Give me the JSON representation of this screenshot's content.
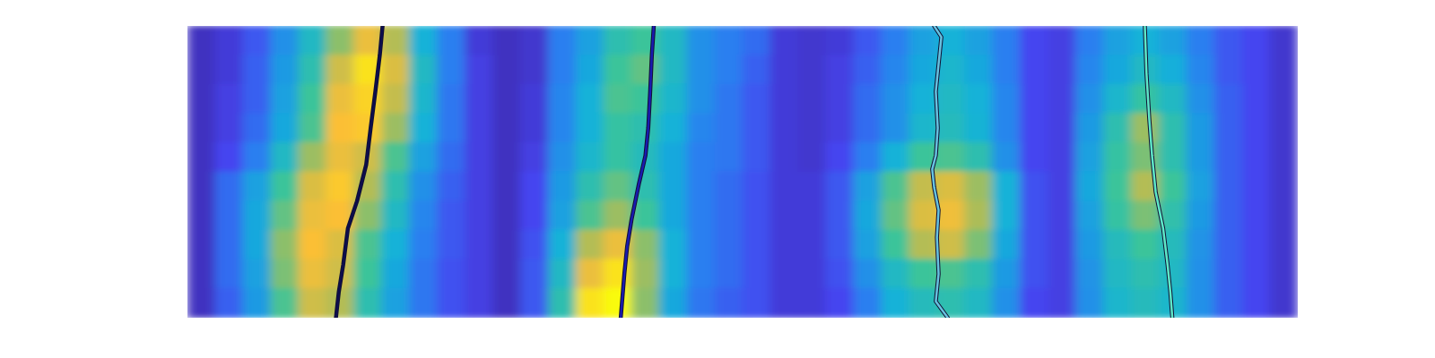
{
  "chart_data": {
    "type": "heatmap",
    "tick_labels": false,
    "xlim": [
      0,
      40
    ],
    "ylim": [
      0,
      10
    ],
    "clim": [
      0,
      1
    ],
    "z": [
      [
        0.05,
        0.1,
        0.2,
        0.35,
        0.5,
        0.7,
        0.85,
        0.75,
        0.45,
        0.3,
        0.1,
        0.05,
        0.08,
        0.3,
        0.4,
        0.55,
        0.6,
        0.5,
        0.35,
        0.3,
        0.25,
        0.1,
        0.08,
        0.1,
        0.2,
        0.3,
        0.4,
        0.45,
        0.4,
        0.3,
        0.15,
        0.12,
        0.3,
        0.4,
        0.45,
        0.4,
        0.3,
        0.2,
        0.15,
        0.08
      ],
      [
        0.05,
        0.1,
        0.22,
        0.38,
        0.55,
        0.8,
        0.95,
        0.82,
        0.5,
        0.3,
        0.12,
        0.05,
        0.08,
        0.3,
        0.42,
        0.6,
        0.65,
        0.5,
        0.35,
        0.3,
        0.22,
        0.1,
        0.08,
        0.12,
        0.22,
        0.32,
        0.42,
        0.48,
        0.42,
        0.3,
        0.15,
        0.12,
        0.32,
        0.42,
        0.5,
        0.44,
        0.32,
        0.2,
        0.15,
        0.08
      ],
      [
        0.05,
        0.12,
        0.22,
        0.4,
        0.6,
        0.85,
        0.92,
        0.78,
        0.48,
        0.28,
        0.12,
        0.05,
        0.1,
        0.32,
        0.45,
        0.62,
        0.6,
        0.48,
        0.35,
        0.28,
        0.2,
        0.1,
        0.08,
        0.12,
        0.25,
        0.35,
        0.45,
        0.5,
        0.45,
        0.32,
        0.15,
        0.12,
        0.35,
        0.48,
        0.58,
        0.5,
        0.35,
        0.22,
        0.15,
        0.08
      ],
      [
        0.05,
        0.12,
        0.25,
        0.42,
        0.62,
        0.88,
        0.9,
        0.72,
        0.45,
        0.28,
        0.12,
        0.05,
        0.1,
        0.32,
        0.45,
        0.58,
        0.55,
        0.45,
        0.32,
        0.28,
        0.2,
        0.1,
        0.08,
        0.12,
        0.25,
        0.35,
        0.48,
        0.52,
        0.46,
        0.32,
        0.15,
        0.12,
        0.38,
        0.55,
        0.72,
        0.55,
        0.38,
        0.22,
        0.15,
        0.08
      ],
      [
        0.05,
        0.15,
        0.3,
        0.5,
        0.72,
        0.85,
        0.8,
        0.62,
        0.4,
        0.25,
        0.12,
        0.05,
        0.12,
        0.35,
        0.48,
        0.58,
        0.52,
        0.42,
        0.3,
        0.28,
        0.2,
        0.1,
        0.08,
        0.15,
        0.3,
        0.45,
        0.6,
        0.62,
        0.55,
        0.35,
        0.15,
        0.12,
        0.4,
        0.58,
        0.68,
        0.55,
        0.38,
        0.22,
        0.15,
        0.08
      ],
      [
        0.05,
        0.25,
        0.4,
        0.6,
        0.82,
        0.9,
        0.75,
        0.55,
        0.35,
        0.22,
        0.12,
        0.05,
        0.15,
        0.38,
        0.55,
        0.65,
        0.55,
        0.42,
        0.3,
        0.25,
        0.18,
        0.1,
        0.1,
        0.2,
        0.4,
        0.62,
        0.78,
        0.82,
        0.72,
        0.45,
        0.18,
        0.12,
        0.42,
        0.6,
        0.75,
        0.6,
        0.4,
        0.22,
        0.15,
        0.08
      ],
      [
        0.05,
        0.25,
        0.42,
        0.65,
        0.85,
        0.88,
        0.7,
        0.5,
        0.32,
        0.2,
        0.12,
        0.05,
        0.15,
        0.4,
        0.62,
        0.72,
        0.6,
        0.42,
        0.3,
        0.25,
        0.18,
        0.1,
        0.1,
        0.2,
        0.42,
        0.65,
        0.82,
        0.86,
        0.74,
        0.45,
        0.18,
        0.12,
        0.4,
        0.58,
        0.68,
        0.56,
        0.38,
        0.22,
        0.15,
        0.08
      ],
      [
        0.05,
        0.25,
        0.42,
        0.7,
        0.88,
        0.82,
        0.62,
        0.45,
        0.3,
        0.2,
        0.12,
        0.05,
        0.18,
        0.45,
        0.75,
        0.85,
        0.7,
        0.45,
        0.3,
        0.25,
        0.18,
        0.1,
        0.1,
        0.2,
        0.4,
        0.6,
        0.75,
        0.8,
        0.68,
        0.42,
        0.18,
        0.12,
        0.38,
        0.52,
        0.6,
        0.52,
        0.36,
        0.22,
        0.15,
        0.08
      ],
      [
        0.05,
        0.25,
        0.4,
        0.68,
        0.85,
        0.8,
        0.6,
        0.42,
        0.28,
        0.18,
        0.12,
        0.05,
        0.2,
        0.5,
        0.85,
        0.95,
        0.72,
        0.45,
        0.3,
        0.25,
        0.18,
        0.1,
        0.1,
        0.18,
        0.35,
        0.5,
        0.6,
        0.62,
        0.55,
        0.38,
        0.18,
        0.12,
        0.36,
        0.5,
        0.55,
        0.5,
        0.35,
        0.22,
        0.15,
        0.08
      ],
      [
        0.05,
        0.22,
        0.38,
        0.62,
        0.8,
        0.75,
        0.55,
        0.4,
        0.28,
        0.18,
        0.12,
        0.05,
        0.2,
        0.55,
        0.95,
        1.0,
        0.7,
        0.42,
        0.28,
        0.22,
        0.18,
        0.1,
        0.1,
        0.15,
        0.3,
        0.45,
        0.52,
        0.55,
        0.5,
        0.35,
        0.15,
        0.12,
        0.35,
        0.48,
        0.52,
        0.48,
        0.35,
        0.22,
        0.15,
        0.08
      ]
    ],
    "tracks": [
      {
        "color": "#0d0d4d",
        "x": [
          7.03,
          6.93,
          6.77,
          6.6,
          6.44,
          6.11,
          5.78,
          5.61,
          5.45,
          5.35
        ],
        "y": [
          0,
          1,
          2.25,
          3.5,
          4.75,
          6,
          6.94,
          8.19,
          9.13,
          10
        ]
      },
      {
        "color": "#1a1ab0",
        "x": [
          16.8,
          16.73,
          16.67,
          16.6,
          16.5,
          16.27,
          16.0,
          15.84,
          15.74,
          15.61
        ],
        "y": [
          0,
          1,
          2.25,
          3.5,
          4.44,
          5.38,
          6.63,
          7.56,
          8.5,
          10
        ]
      },
      {
        "color": "#66c2e0",
        "x": [
          26.9,
          27.16,
          27.06,
          26.96,
          27.03,
          26.96,
          26.83,
          26.9,
          27.06,
          27.0,
          27.06,
          26.96,
          27.39
        ],
        "y": [
          0,
          0.38,
          1.31,
          2.25,
          3.5,
          4.44,
          4.91,
          5.53,
          6.31,
          7.25,
          8.5,
          9.44,
          10
        ]
      },
      {
        "color": "#5ee8c8",
        "x": [
          34.49,
          34.55,
          34.65,
          34.75,
          34.88,
          35.15,
          35.31,
          35.41,
          35.48
        ],
        "y": [
          0,
          1.63,
          3.19,
          4.44,
          5.69,
          6.94,
          8.19,
          9.13,
          10
        ]
      }
    ]
  }
}
